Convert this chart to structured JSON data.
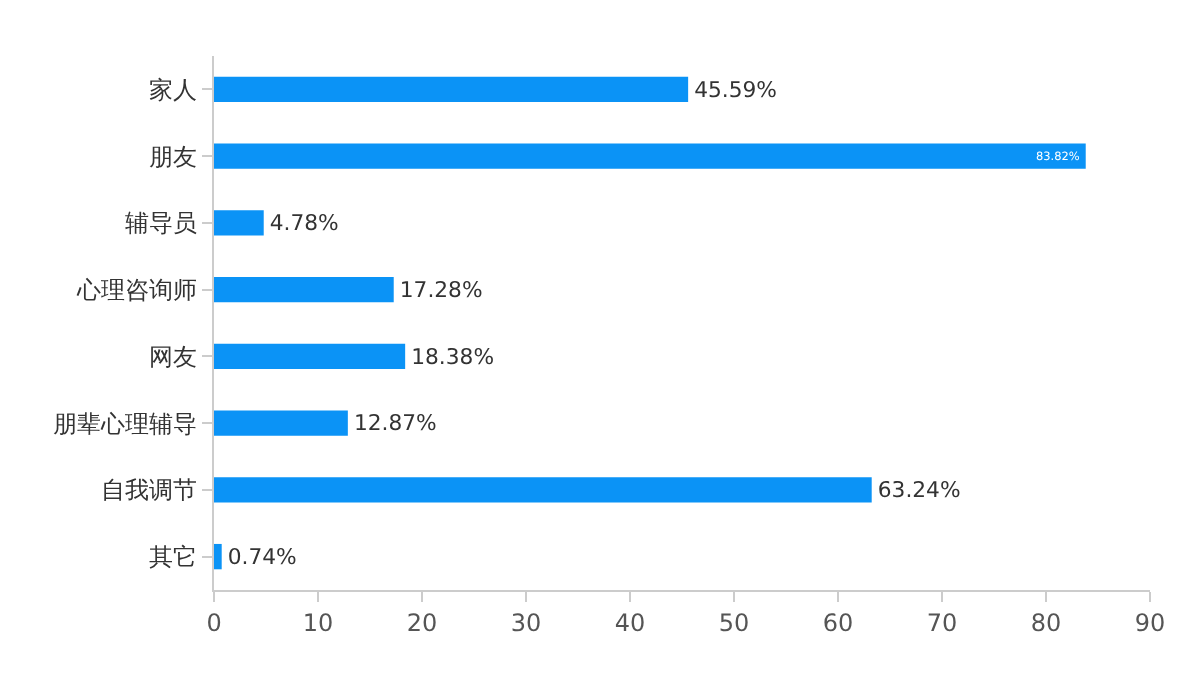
{
  "chart_data": {
    "type": "bar",
    "orientation": "horizontal",
    "categories": [
      "家人",
      "朋友",
      "辅导员",
      "心理咨询师",
      "网友",
      "朋辈心理辅导",
      "自我调节",
      "其它"
    ],
    "values": [
      45.59,
      83.82,
      4.78,
      17.28,
      18.38,
      12.87,
      63.24,
      0.74
    ],
    "value_labels": [
      "45.59%",
      "83.82%",
      "4.78%",
      "17.28%",
      "18.38%",
      "12.87%",
      "63.24%",
      "0.74%"
    ],
    "color": "#0b93f6",
    "xlim": [
      0,
      90
    ],
    "xticks": [
      0,
      10,
      20,
      30,
      40,
      50,
      60,
      70,
      80,
      90
    ],
    "grid": false,
    "legend": false
  }
}
